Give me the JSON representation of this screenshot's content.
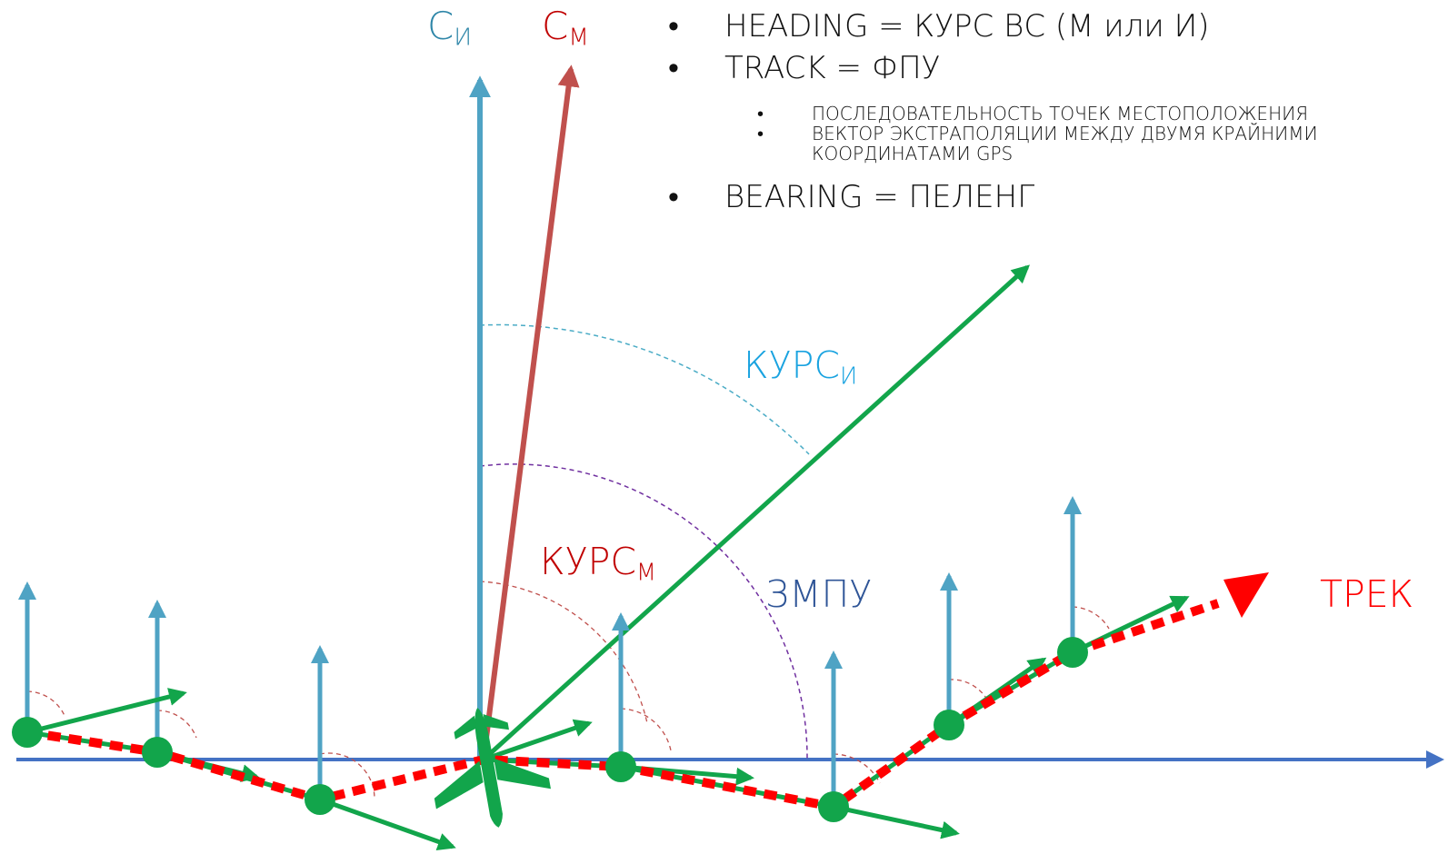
{
  "labels": {
    "north_true": "С",
    "north_true_sub": "И",
    "north_mag": "С",
    "north_mag_sub": "М",
    "heading_true": "КУРС",
    "heading_true_sub": "И",
    "heading_mag": "КУРС",
    "heading_mag_sub": "М",
    "zmpu": "ЗМПУ",
    "track": "ТРЕК"
  },
  "bullets": {
    "heading_term": "HEADING",
    "heading_def": " = КУРС ВС (М или И)",
    "track_term": "TRACK",
    "track_def": " = ФПУ",
    "track_sub1": "ПОСЛЕДОВАТЕЛЬНОСТЬ ТОЧЕК МЕСТОПОЛОЖЕНИЯ",
    "track_sub2_line1": "ВЕКТОР ЭКСТРАПОЛЯЦИИ МЕЖДУ ДВУМЯ КРАЙНИМИ",
    "track_sub2_line2": "КООРДИНАТАМИ GPS",
    "bearing_term": "BEARING",
    "bearing_def": " = ПЕЛЕНГ"
  },
  "colors": {
    "north_true": "#4fa3c4",
    "north_mag": "#c0504d",
    "heading_true_label": "#1aa3e0",
    "heading_mag_label": "#c00000",
    "zmpu_label": "#2f5597",
    "track_label": "#ff0000",
    "heading_vector": "#12a54b",
    "track_dashes": "#ff0000",
    "axis": "#4472c4",
    "arc_true": "#4bacc6",
    "arc_mag": "#7030a0"
  },
  "icons": {
    "aircraft": "airplane-icon"
  }
}
